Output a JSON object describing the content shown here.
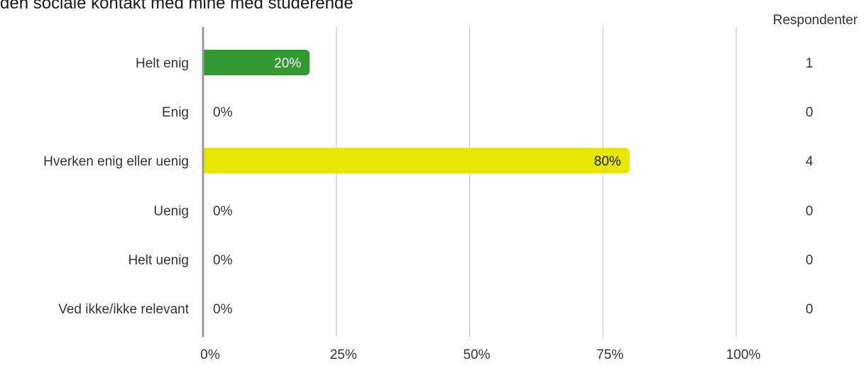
{
  "chart_data": {
    "type": "bar",
    "orientation": "horizontal",
    "title": "den sociale kontakt med mine med studerende",
    "categories": [
      "Helt enig",
      "Enig",
      "Hverken enig eller uenig",
      "Uenig",
      "Helt uenig",
      "Ved ikke/ikke relevant"
    ],
    "values": [
      20,
      0,
      80,
      0,
      0,
      0
    ],
    "value_labels": [
      "20%",
      "0%",
      "80%",
      "0%",
      "0%",
      "0%"
    ],
    "respondents_header": "Respondenter",
    "respondents": [
      "1",
      "0",
      "4",
      "0",
      "0",
      "0"
    ],
    "x_ticks": [
      0,
      25,
      50,
      75,
      100
    ],
    "x_tick_labels": [
      "0%",
      "25%",
      "50%",
      "75%",
      "100%"
    ],
    "xlim": [
      0,
      100
    ],
    "grid": true,
    "colors": {
      "Helt enig": "#339933",
      "Hverken enig eller uenig": "#e6e600"
    }
  }
}
